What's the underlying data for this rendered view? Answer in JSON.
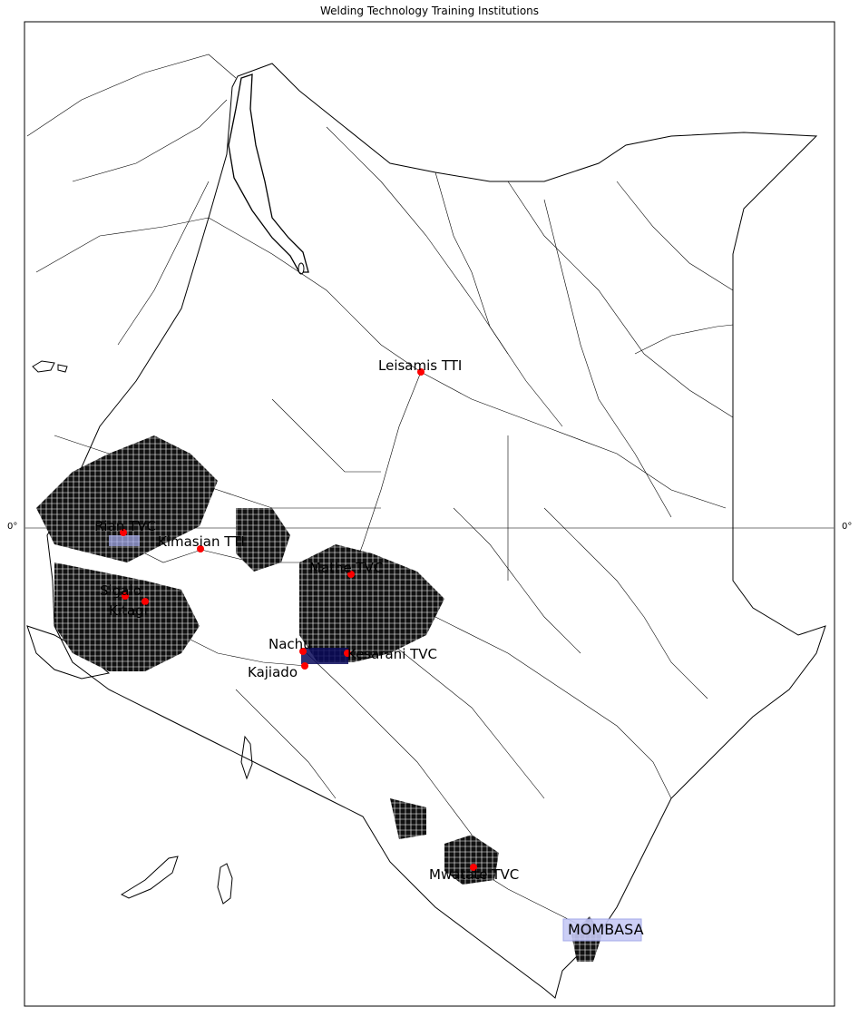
{
  "map": {
    "title": "Welding Technology Training Institutions",
    "equator_label_left": "0°",
    "equator_label_right": "0°",
    "marker_color": "#ff0000",
    "road_color": "#000000",
    "highlight_color": "#aab0f2",
    "institutions": [
      {
        "name": "Leisamis TTI"
      },
      {
        "name": "Rian TVC"
      },
      {
        "name": "Kimasian TTI"
      },
      {
        "name": "Mathe TVC"
      },
      {
        "name": "Sigalo"
      },
      {
        "name": "Kitagi"
      },
      {
        "name": "Nachu"
      },
      {
        "name": "Kajiado"
      },
      {
        "name": "Kesarani TVC"
      },
      {
        "name": "Mwatate TVC"
      }
    ],
    "cities": [
      {
        "name": "MOMBASA"
      }
    ]
  }
}
